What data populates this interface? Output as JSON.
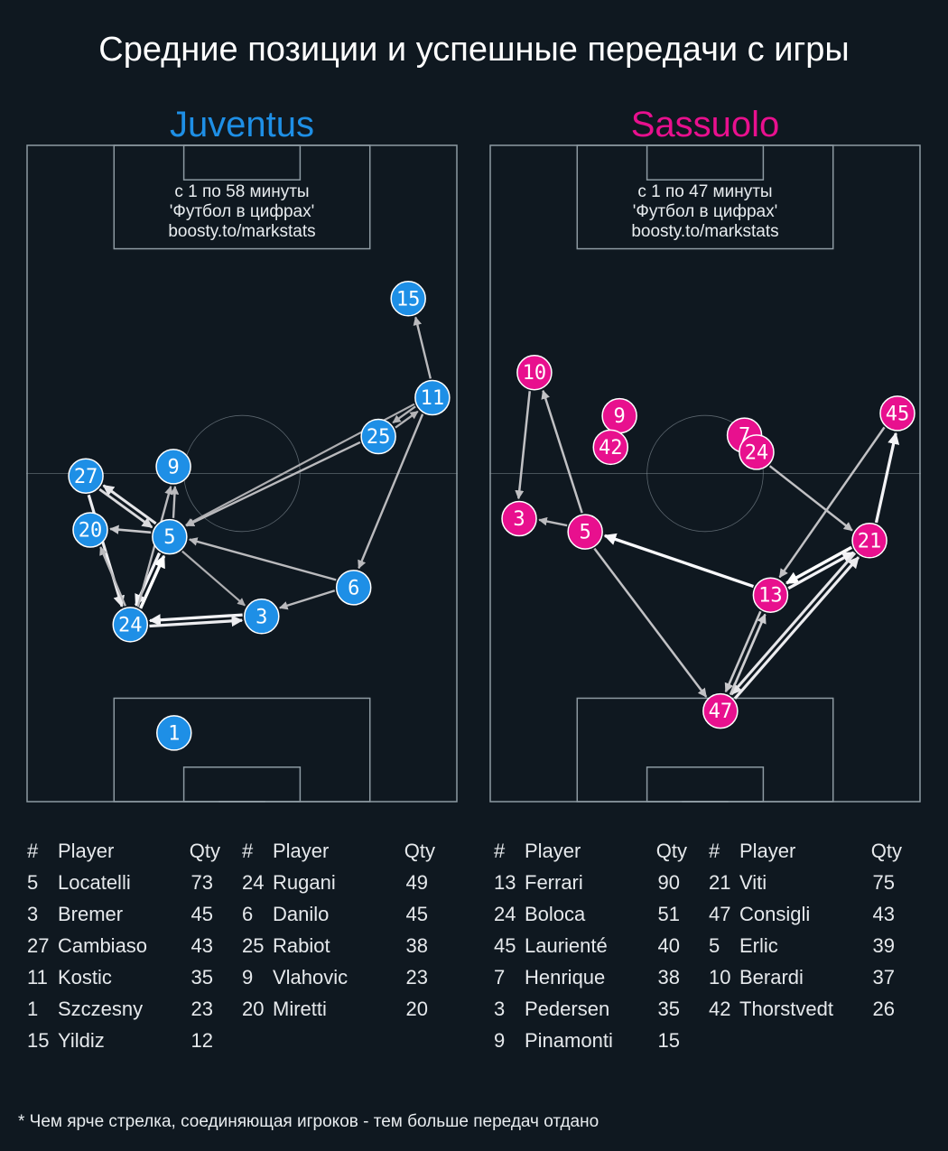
{
  "title": "Средние позиции и успешные передачи с игры",
  "footnote": "* Чем ярче стрелка, соединяющая игроков - тем больше передач отдано",
  "roster_headers": {
    "num": "#",
    "player": "Player",
    "qty": "Qty"
  },
  "colors": {
    "background": "#0f1820",
    "pitch_lines": "#8d9aa2",
    "juventus": "#1e8fe6",
    "sassuolo": "#e8108e"
  },
  "chart_data": [
    {
      "type": "scatter",
      "team": "Juventus",
      "color": "#1e8fe6",
      "caption": [
        "с 1 по 58 минуты",
        "'Футбол в цифрах'",
        "boosty.to/markstats"
      ],
      "pitch": {
        "length": 105,
        "width": 68
      },
      "players": [
        {
          "num": "15",
          "x": 80.4,
          "y": 60.2
        },
        {
          "num": "11",
          "x": 64.6,
          "y": 64.0
        },
        {
          "num": "25",
          "x": 58.4,
          "y": 55.5
        },
        {
          "num": "9",
          "x": 53.6,
          "y": 23.2
        },
        {
          "num": "27",
          "x": 52.1,
          "y": 9.4
        },
        {
          "num": "20",
          "x": 43.5,
          "y": 10.1
        },
        {
          "num": "5",
          "x": 42.4,
          "y": 22.6
        },
        {
          "num": "6",
          "x": 34.3,
          "y": 51.6
        },
        {
          "num": "3",
          "x": 29.7,
          "y": 37.1
        },
        {
          "num": "24",
          "x": 28.4,
          "y": 16.4
        },
        {
          "num": "1",
          "x": 11.1,
          "y": 23.3
        }
      ],
      "passes": [
        {
          "from": "11",
          "to": "15",
          "intensity": 0.45
        },
        {
          "from": "25",
          "to": "11",
          "intensity": 0.4
        },
        {
          "from": "11",
          "to": "25",
          "intensity": 0.4
        },
        {
          "from": "11",
          "to": "6",
          "intensity": 0.45
        },
        {
          "from": "11",
          "to": "5",
          "intensity": 0.35
        },
        {
          "from": "25",
          "to": "5",
          "intensity": 0.45
        },
        {
          "from": "6",
          "to": "5",
          "intensity": 0.45
        },
        {
          "from": "6",
          "to": "3",
          "intensity": 0.45
        },
        {
          "from": "5",
          "to": "3",
          "intensity": 0.35
        },
        {
          "from": "5",
          "to": "9",
          "intensity": 0.45
        },
        {
          "from": "5",
          "to": "27",
          "intensity": 0.8
        },
        {
          "from": "27",
          "to": "5",
          "intensity": 0.7
        },
        {
          "from": "5",
          "to": "20",
          "intensity": 0.55
        },
        {
          "from": "27",
          "to": "24",
          "intensity": 0.85
        },
        {
          "from": "24",
          "to": "5",
          "intensity": 1.0
        },
        {
          "from": "5",
          "to": "24",
          "intensity": 0.9
        },
        {
          "from": "3",
          "to": "24",
          "intensity": 0.9
        },
        {
          "from": "24",
          "to": "3",
          "intensity": 0.85
        },
        {
          "from": "24",
          "to": "9",
          "intensity": 0.45
        },
        {
          "from": "24",
          "to": "20",
          "intensity": 0.45
        }
      ],
      "roster": [
        [
          {
            "num": "5",
            "name": "Locatelli",
            "qty": "73"
          },
          {
            "num": "3",
            "name": "Bremer",
            "qty": "45"
          },
          {
            "num": "27",
            "name": "Cambiaso",
            "qty": "43"
          },
          {
            "num": "11",
            "name": "Kostic",
            "qty": "35"
          },
          {
            "num": "1",
            "name": "Szczesny",
            "qty": "23"
          },
          {
            "num": "15",
            "name": "Yildiz",
            "qty": "12"
          }
        ],
        [
          {
            "num": "24",
            "name": "Rugani",
            "qty": "49"
          },
          {
            "num": "6",
            "name": "Danilo",
            "qty": "45"
          },
          {
            "num": "25",
            "name": "Rabiot",
            "qty": "38"
          },
          {
            "num": "9",
            "name": "Vlahovic",
            "qty": "23"
          },
          {
            "num": "20",
            "name": "Miretti",
            "qty": "20"
          }
        ]
      ]
    },
    {
      "type": "scatter",
      "team": "Sassuolo",
      "color": "#e8108e",
      "caption": [
        "с 1 по 47 минуты",
        "'Футбол в цифрах'",
        "boosty.to/markstats"
      ],
      "pitch": {
        "length": 105,
        "width": 68
      },
      "players": [
        {
          "num": "10",
          "x": 68.6,
          "y": 7.1
        },
        {
          "num": "45",
          "x": 62.1,
          "y": 64.3
        },
        {
          "num": "9",
          "x": 61.7,
          "y": 20.5
        },
        {
          "num": "7",
          "x": 58.6,
          "y": 40.2
        },
        {
          "num": "42",
          "x": 56.7,
          "y": 19.1
        },
        {
          "num": "24",
          "x": 55.9,
          "y": 42.1
        },
        {
          "num": "3",
          "x": 45.3,
          "y": 4.7
        },
        {
          "num": "5",
          "x": 43.2,
          "y": 15.1
        },
        {
          "num": "21",
          "x": 41.8,
          "y": 59.9
        },
        {
          "num": "13",
          "x": 33.1,
          "y": 44.3
        },
        {
          "num": "47",
          "x": 14.6,
          "y": 36.4
        }
      ],
      "passes": [
        {
          "from": "21",
          "to": "45",
          "intensity": 0.9
        },
        {
          "from": "45",
          "to": "13",
          "intensity": 0.5
        },
        {
          "from": "24",
          "to": "21",
          "intensity": 0.5
        },
        {
          "from": "21",
          "to": "13",
          "intensity": 1.0
        },
        {
          "from": "13",
          "to": "21",
          "intensity": 0.9
        },
        {
          "from": "13",
          "to": "5",
          "intensity": 0.95
        },
        {
          "from": "5",
          "to": "10",
          "intensity": 0.5
        },
        {
          "from": "10",
          "to": "3",
          "intensity": 0.5
        },
        {
          "from": "5",
          "to": "3",
          "intensity": 0.45
        },
        {
          "from": "5",
          "to": "47",
          "intensity": 0.5
        },
        {
          "from": "47",
          "to": "21",
          "intensity": 0.85
        },
        {
          "from": "21",
          "to": "47",
          "intensity": 0.8
        },
        {
          "from": "47",
          "to": "13",
          "intensity": 0.6
        },
        {
          "from": "13",
          "to": "47",
          "intensity": 0.55
        }
      ],
      "roster": [
        [
          {
            "num": "13",
            "name": "Ferrari",
            "qty": "90"
          },
          {
            "num": "24",
            "name": "Boloca",
            "qty": "51"
          },
          {
            "num": "45",
            "name": "Laurienté",
            "qty": "40"
          },
          {
            "num": "7",
            "name": "Henrique",
            "qty": "38"
          },
          {
            "num": "3",
            "name": "Pedersen",
            "qty": "35"
          },
          {
            "num": "9",
            "name": "Pinamonti",
            "qty": "15"
          }
        ],
        [
          {
            "num": "21",
            "name": "Viti",
            "qty": "75"
          },
          {
            "num": "47",
            "name": "Consigli",
            "qty": "43"
          },
          {
            "num": "5",
            "name": "Erlic",
            "qty": "39"
          },
          {
            "num": "10",
            "name": "Berardi",
            "qty": "37"
          },
          {
            "num": "42",
            "name": "Thorstvedt",
            "qty": "26"
          }
        ]
      ]
    }
  ]
}
